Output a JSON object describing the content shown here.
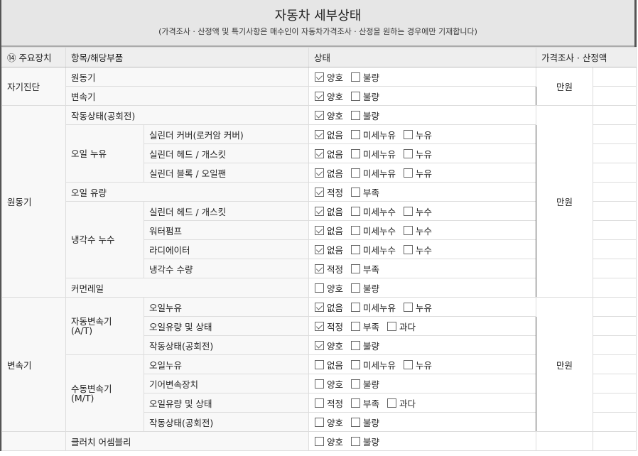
{
  "title": "자동차 세부상태",
  "subtitle": "(가격조사 · 산정액 및 특기사항은 매수인이 자동차가격조사 · 산정을 원하는 경우에만 기재합니다)",
  "headers": [
    "⑭ 주요장치",
    "항목/해당부품",
    "상태",
    "가격조사 · 산정액"
  ],
  "sections": [
    {
      "name": "자기진단",
      "price": "만원",
      "rows": [
        {
          "item": "원동기",
          "options": [
            {
              "label": "양호",
              "checked": true
            },
            {
              "label": "불량",
              "checked": false
            }
          ]
        },
        {
          "item": "변속기",
          "options": [
            {
              "label": "양호",
              "checked": true
            },
            {
              "label": "불량",
              "checked": false
            }
          ]
        }
      ]
    },
    {
      "name": "원동기",
      "price": "만원",
      "rows": [
        {
          "item": "작동상태(공회전)",
          "options": [
            {
              "label": "양호",
              "checked": true
            },
            {
              "label": "불량",
              "checked": false
            }
          ]
        },
        {
          "sub": "오일 누유",
          "items": [
            {
              "item": "실린더 커버(로커암 커버)",
              "options": [
                {
                  "label": "없음",
                  "checked": true
                },
                {
                  "label": "미세누유",
                  "checked": false
                },
                {
                  "label": "누유",
                  "checked": false
                }
              ]
            },
            {
              "item": "실린더 헤드 / 개스킷",
              "options": [
                {
                  "label": "없음",
                  "checked": true
                },
                {
                  "label": "미세누유",
                  "checked": false
                },
                {
                  "label": "누유",
                  "checked": false
                }
              ]
            },
            {
              "item": "실린더 블록 / 오일팬",
              "options": [
                {
                  "label": "없음",
                  "checked": true
                },
                {
                  "label": "미세누유",
                  "checked": false
                },
                {
                  "label": "누유",
                  "checked": false
                }
              ]
            }
          ]
        },
        {
          "item": "오일 유량",
          "options": [
            {
              "label": "적정",
              "checked": true
            },
            {
              "label": "부족",
              "checked": false
            }
          ]
        },
        {
          "sub": "냉각수 누수",
          "items": [
            {
              "item": "실린더 헤드 / 개스킷",
              "options": [
                {
                  "label": "없음",
                  "checked": true
                },
                {
                  "label": "미세누수",
                  "checked": false
                },
                {
                  "label": "누수",
                  "checked": false
                }
              ]
            },
            {
              "item": "워터펌프",
              "options": [
                {
                  "label": "없음",
                  "checked": true
                },
                {
                  "label": "미세누수",
                  "checked": false
                },
                {
                  "label": "누수",
                  "checked": false
                }
              ]
            },
            {
              "item": "라디에이터",
              "options": [
                {
                  "label": "없음",
                  "checked": true
                },
                {
                  "label": "미세누수",
                  "checked": false
                },
                {
                  "label": "누수",
                  "checked": false
                }
              ]
            },
            {
              "item": "냉각수 수량",
              "options": [
                {
                  "label": "적정",
                  "checked": true
                },
                {
                  "label": "부족",
                  "checked": false
                }
              ]
            }
          ]
        },
        {
          "item": "커먼레일",
          "options": [
            {
              "label": "양호",
              "checked": false
            },
            {
              "label": "불량",
              "checked": false
            }
          ]
        }
      ]
    },
    {
      "name": "변속기",
      "price": "만원",
      "rows": [
        {
          "sub": "자동변속기\n(A/T)",
          "items": [
            {
              "item": "오일누유",
              "options": [
                {
                  "label": "없음",
                  "checked": true
                },
                {
                  "label": "미세누유",
                  "checked": false
                },
                {
                  "label": "누유",
                  "checked": false
                }
              ]
            },
            {
              "item": "오일유량 및 상태",
              "options": [
                {
                  "label": "적정",
                  "checked": true
                },
                {
                  "label": "부족",
                  "checked": false
                },
                {
                  "label": "과다",
                  "checked": false
                }
              ]
            },
            {
              "item": "작동상태(공회전)",
              "options": [
                {
                  "label": "양호",
                  "checked": true
                },
                {
                  "label": "불량",
                  "checked": false
                }
              ]
            }
          ]
        },
        {
          "sub": "수동변속기\n(M/T)",
          "items": [
            {
              "item": "오일누유",
              "options": [
                {
                  "label": "없음",
                  "checked": false
                },
                {
                  "label": "미세누유",
                  "checked": false
                },
                {
                  "label": "누유",
                  "checked": false
                }
              ]
            },
            {
              "item": "기어변속장치",
              "options": [
                {
                  "label": "양호",
                  "checked": false
                },
                {
                  "label": "불량",
                  "checked": false
                }
              ]
            },
            {
              "item": "오일유량 및 상태",
              "options": [
                {
                  "label": "적정",
                  "checked": false
                },
                {
                  "label": "부족",
                  "checked": false
                },
                {
                  "label": "과다",
                  "checked": false
                }
              ]
            },
            {
              "item": "작동상태(공회전)",
              "options": [
                {
                  "label": "양호",
                  "checked": false
                },
                {
                  "label": "불량",
                  "checked": false
                }
              ]
            }
          ]
        }
      ]
    },
    {
      "name": "",
      "price": "",
      "rows": [
        {
          "item": "클러치 어셈블리",
          "options": [
            {
              "label": "양호",
              "checked": false
            },
            {
              "label": "불량",
              "checked": false
            }
          ]
        }
      ]
    }
  ]
}
